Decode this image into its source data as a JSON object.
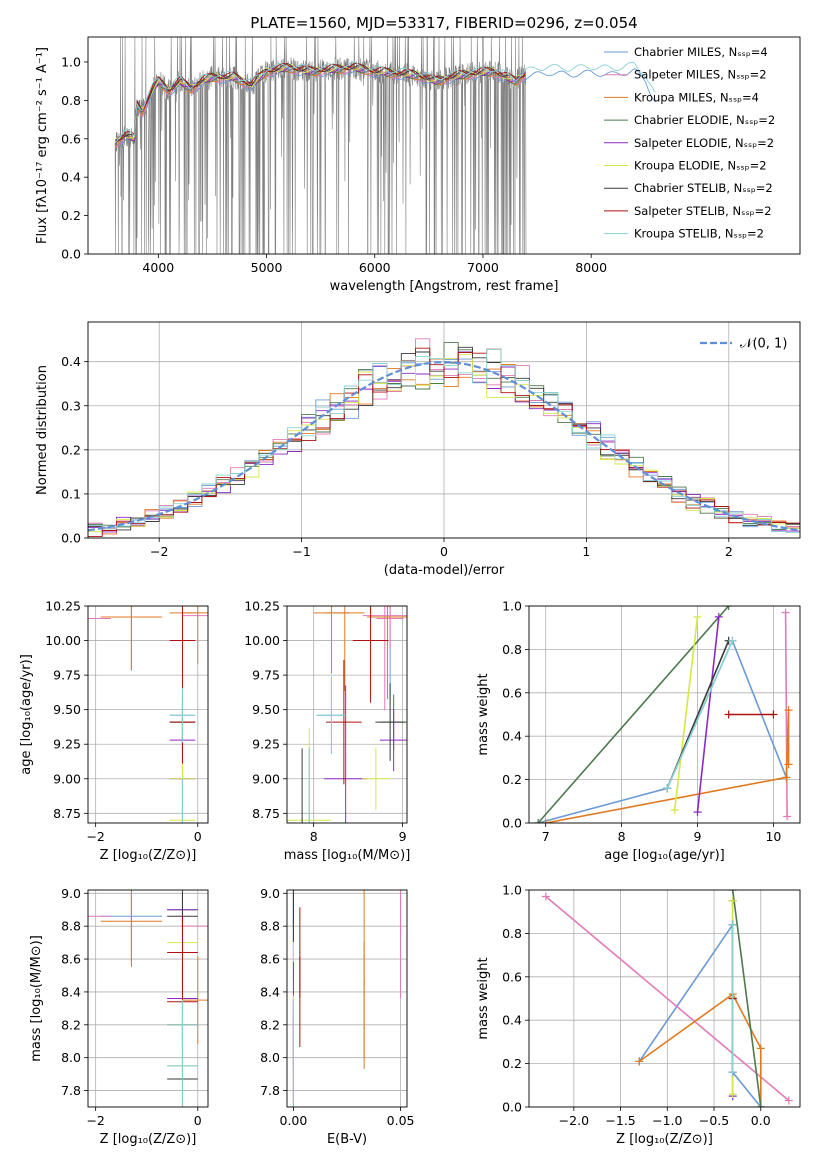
{
  "title": "PLATE=1560, MJD=53317, FIBERID=0296, z=0.054",
  "colors": {
    "data": "#808080",
    "gauss": "#5f8fd6",
    "grid": "#b0b0b0",
    "spine": "#000000"
  },
  "models": [
    {
      "name": "Chabrier MILES, Nₛₛₚ=4",
      "color": "#6a9ad8"
    },
    {
      "name": "Salpeter MILES, Nₛₛₚ=2",
      "color": "#e27ab8"
    },
    {
      "name": "Kroupa MILES, Nₛₛₚ=4",
      "color": "#e07a20"
    },
    {
      "name": "Chabrier ELODIE, Nₛₛₚ=2",
      "color": "#4e7a4e"
    },
    {
      "name": "Salpeter ELODIE, Nₛₛₚ=2",
      "color": "#8a2bc2"
    },
    {
      "name": "Kroupa ELODIE, Nₛₛₚ=2",
      "color": "#d4e84a"
    },
    {
      "name": "Chabrier STELIB, Nₛₛₚ=2",
      "color": "#3a3a3a"
    },
    {
      "name": "Salpeter STELIB, Nₛₛₚ=2",
      "color": "#b01010"
    },
    {
      "name": "Kroupa STELIB, Nₛₛₚ=2",
      "color": "#8ad2d2"
    }
  ],
  "chart_data": [
    {
      "id": "spectrum",
      "type": "line",
      "xlabel": "wavelength [Angstrom, rest frame]",
      "ylabel": "Flux [fλ10⁻¹⁷ erg cm⁻² s⁻¹ A⁻¹]",
      "xlim": [
        3350,
        9930
      ],
      "ylim": [
        0,
        1.13
      ],
      "xticks": [
        4000,
        5000,
        6000,
        7000,
        8000
      ],
      "yticks": [
        0.0,
        0.2,
        0.4,
        0.6,
        0.8,
        1.0
      ],
      "data_range": [
        3600,
        7400
      ],
      "model_continuum": {
        "x": [
          3600,
          3700,
          3780,
          3800,
          3850,
          3900,
          3950,
          4000,
          4100,
          4200,
          4300,
          4400,
          4500,
          4700,
          4860,
          5000,
          5200,
          5400,
          5600,
          5800,
          6000,
          6200,
          6400,
          6563,
          6700,
          6900,
          7100,
          7300,
          7400,
          7600,
          7800,
          8000,
          8200,
          8400,
          8500,
          8600,
          8700,
          8800,
          8900,
          9000,
          9100,
          9200,
          9300,
          9400,
          9500,
          9600,
          9700,
          9800,
          9900
        ],
        "y": [
          0.58,
          0.62,
          0.6,
          0.78,
          0.74,
          0.8,
          0.86,
          0.9,
          0.85,
          0.9,
          0.86,
          0.9,
          0.92,
          0.92,
          0.88,
          0.95,
          0.97,
          0.95,
          0.96,
          0.97,
          0.95,
          0.94,
          0.93,
          0.9,
          0.92,
          0.94,
          0.95,
          0.9,
          0.94,
          0.96,
          0.95,
          0.96,
          0.95,
          0.97,
          0.92,
          0.8,
          0.96,
          0.95,
          0.9,
          0.94,
          0.93,
          0.91,
          0.92,
          0.94,
          0.93,
          0.91,
          0.92,
          0.9,
          0.91
        ]
      }
    },
    {
      "id": "residuals",
      "type": "histogram",
      "xlabel": "(data-model)/error",
      "ylabel": "Normed distribution",
      "xlim": [
        -2.5,
        2.5
      ],
      "ylim": [
        0,
        0.49
      ],
      "xticks": [
        -2,
        -1,
        0,
        1,
        2
      ],
      "yticks": [
        0.0,
        0.1,
        0.2,
        0.3,
        0.4
      ],
      "grid": true,
      "legend": "𝒩(0, 1)",
      "legend_position": "top-right",
      "bin_width": 0.1
    },
    {
      "id": "age_vs_Z",
      "type": "scatter",
      "xlabel": "Z [log₁₀(Z/Z⊙)]",
      "ylabel": "age  [log₁₀(age/yr)]",
      "xlim": [
        -2.15,
        0.2
      ],
      "ylim": [
        8.68,
        10.25
      ],
      "xticks": [
        -2,
        0
      ],
      "yticks": [
        8.75,
        9.0,
        9.25,
        9.5,
        9.75,
        10.0,
        10.25
      ],
      "grid": true
    },
    {
      "id": "age_vs_mass",
      "type": "scatter",
      "xlabel": "mass [log₁₀(M/M⊙)]",
      "ylabel": "",
      "xlim": [
        7.7,
        9.05
      ],
      "ylim": [
        8.68,
        10.25
      ],
      "xticks": [
        8,
        9
      ],
      "yticks": [
        8.75,
        9.0,
        9.25,
        9.5,
        9.75,
        10.0,
        10.25
      ],
      "grid": true
    },
    {
      "id": "weight_vs_age",
      "type": "line",
      "xlabel": "age  [log₁₀(age/yr)]",
      "ylabel": "mass weight",
      "xlim": [
        6.78,
        10.35
      ],
      "ylim": [
        0,
        1.0
      ],
      "xticks": [
        7,
        8,
        9,
        10
      ],
      "yticks": [
        0.0,
        0.2,
        0.4,
        0.6,
        0.8,
        1.0
      ],
      "grid": true
    },
    {
      "id": "mass_vs_Z",
      "type": "scatter",
      "xlabel": "Z [log₁₀(Z/Z⊙)]",
      "ylabel": "mass [log₁₀(M/M⊙)]",
      "xlim": [
        -2.15,
        0.2
      ],
      "ylim": [
        7.7,
        9.02
      ],
      "xticks": [
        -2,
        0
      ],
      "yticks": [
        7.8,
        8.0,
        8.2,
        8.4,
        8.6,
        8.8,
        9.0
      ],
      "grid": true
    },
    {
      "id": "mass_vs_ebv",
      "type": "scatter",
      "xlabel": "E(B-V)",
      "ylabel": "",
      "xlim": [
        -0.003,
        0.053
      ],
      "ylim": [
        7.7,
        9.02
      ],
      "xticks": [
        0.0,
        0.05
      ],
      "yticks": [
        7.8,
        8.0,
        8.2,
        8.4,
        8.6,
        8.8,
        9.0
      ],
      "grid": true
    },
    {
      "id": "weight_vs_Z",
      "type": "line",
      "xlabel": "Z [log₁₀(Z/Z⊙)]",
      "ylabel": "mass weight",
      "xlim": [
        -2.48,
        0.42
      ],
      "ylim": [
        0,
        1.0
      ],
      "xticks": [
        -2.0,
        -1.5,
        -1.0,
        -0.5,
        0.0
      ],
      "yticks": [
        0.0,
        0.2,
        0.4,
        0.6,
        0.8,
        1.0
      ],
      "grid": true
    }
  ],
  "ssp_fits": [
    {
      "model": 0,
      "ebv": 0.0,
      "ssps": [
        {
          "age": 10.17,
          "Z": -1.3,
          "mass": 8.86,
          "weight": 0.21
        },
        {
          "age": 9.46,
          "Z": -0.3,
          "mass": 8.2,
          "weight": 0.84
        },
        {
          "age": 8.6,
          "Z": -0.3,
          "mass": 7.95,
          "weight": 0.16
        },
        {
          "age": 6.9,
          "Z": 0.0,
          "mass": 7.8,
          "weight": 0.0
        }
      ]
    },
    {
      "model": 1,
      "ebv": 0.05,
      "ssps": [
        {
          "age": 10.16,
          "Z": -2.3,
          "mass": 8.86,
          "weight": 0.97
        },
        {
          "age": 10.18,
          "Z": 0.3,
          "mass": 8.8,
          "weight": 0.03
        }
      ]
    },
    {
      "model": 2,
      "ebv": 0.033,
      "ssps": [
        {
          "age": 10.17,
          "Z": -1.3,
          "mass": 8.83,
          "weight": 0.21
        },
        {
          "age": 10.2,
          "Z": -0.3,
          "mass": 8.2,
          "weight": 0.52
        },
        {
          "age": 10.2,
          "Z": 0.0,
          "mass": 8.35,
          "weight": 0.27
        },
        {
          "age": 7.0,
          "Z": 0.0,
          "mass": 7.8,
          "weight": 0.0
        }
      ]
    },
    {
      "model": 3,
      "ebv": 0.0,
      "ssps": [
        {
          "age": 9.41,
          "Z": -0.3,
          "mass": 8.9,
          "weight": 1.0
        },
        {
          "age": 6.9,
          "Z": 0.0,
          "mass": 7.87,
          "weight": 0.0
        }
      ]
    },
    {
      "model": 4,
      "ebv": 0.0,
      "ssps": [
        {
          "age": 9.28,
          "Z": -0.3,
          "mass": 8.9,
          "weight": 0.95
        },
        {
          "age": 9.0,
          "Z": -0.3,
          "mass": 8.36,
          "weight": 0.05
        }
      ]
    },
    {
      "model": 5,
      "ebv": 0.0,
      "ssps": [
        {
          "age": 9.0,
          "Z": -0.3,
          "mass": 8.7,
          "weight": 0.95
        },
        {
          "age": 8.7,
          "Z": -0.3,
          "mass": 7.95,
          "weight": 0.06
        }
      ]
    },
    {
      "model": 6,
      "ebv": 0.0,
      "ssps": [
        {
          "age": 9.41,
          "Z": -0.3,
          "mass": 8.86,
          "weight": 0.84
        },
        {
          "age": 8.6,
          "Z": -0.3,
          "mass": 7.87,
          "weight": 0.16
        }
      ]
    },
    {
      "model": 7,
      "ebv": 0.003,
      "ssps": [
        {
          "age": 10.0,
          "Z": -0.3,
          "mass": 8.64,
          "weight": 0.5
        },
        {
          "age": 9.41,
          "Z": -0.3,
          "mass": 8.34,
          "weight": 0.5
        }
      ]
    },
    {
      "model": 8,
      "ebv": 0.0,
      "ssps": [
        {
          "age": 9.46,
          "Z": -0.3,
          "mass": 8.2,
          "weight": 0.84
        },
        {
          "age": 8.6,
          "Z": -0.3,
          "mass": 7.95,
          "weight": 0.16
        }
      ]
    }
  ]
}
